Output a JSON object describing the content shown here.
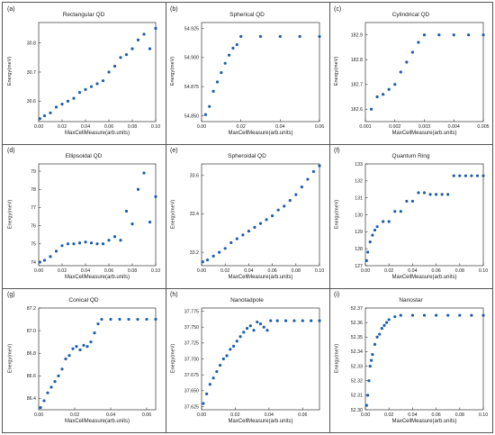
{
  "colors": {
    "marker": "#1f5fa8",
    "border": "#555555"
  },
  "panels": [
    {
      "label": "(a)",
      "xlabel": "MaxCellMeasure(arb.units)",
      "ylabel": "Energy(meV)"
    },
    {
      "label": "(b)",
      "xlabel": "MaxCellMeasure(arb.units)",
      "ylabel": "Energy(meV)"
    },
    {
      "label": "(c)",
      "xlabel": "MaxCellMeasure(arb.units)",
      "ylabel": "Energy(meV)"
    },
    {
      "label": "(d)",
      "xlabel": "MaxCellMeasure(arb.units)",
      "ylabel": "Energy(meV)"
    },
    {
      "label": "(e)",
      "xlabel": "MaxCellMeasure(arb.units)",
      "ylabel": "Energy(meV)"
    },
    {
      "label": "(f)",
      "xlabel": "MaxCellMeasure(arb.units)",
      "ylabel": "Energy(meV)"
    },
    {
      "label": "(g)",
      "xlabel": "MaxCellMeasure(arb.units)",
      "ylabel": "Energy(meV)"
    },
    {
      "label": "(h)",
      "xlabel": "MaxCellMeasure(arb.units)",
      "ylabel": "Energy(meV)"
    },
    {
      "label": "(i)",
      "xlabel": "MaxCellMeasure(arb.units)",
      "ylabel": "Energy(meV)"
    }
  ],
  "chart_data": [
    {
      "type": "scatter",
      "title": "Rectangular QD",
      "xlim": [
        0,
        0.1
      ],
      "ylim": [
        30.53,
        30.87
      ],
      "xticks": [
        "0.00",
        "0.02",
        "0.04",
        "0.06",
        "0.08",
        "0.10"
      ],
      "yticks": [
        "30.6",
        "30.7",
        "30.8"
      ],
      "x": [
        0.001,
        0.005,
        0.01,
        0.015,
        0.02,
        0.025,
        0.03,
        0.035,
        0.04,
        0.045,
        0.05,
        0.055,
        0.06,
        0.065,
        0.07,
        0.075,
        0.08,
        0.085,
        0.09,
        0.095,
        0.1
      ],
      "y": [
        30.54,
        30.55,
        30.56,
        30.58,
        30.59,
        30.6,
        30.61,
        30.63,
        30.64,
        30.65,
        30.66,
        30.67,
        30.7,
        30.72,
        30.75,
        30.76,
        30.78,
        30.81,
        30.83,
        30.78,
        30.85
      ]
    },
    {
      "type": "scatter",
      "title": "Spherical QD",
      "xlim": [
        0,
        0.06
      ],
      "ylim": [
        54.845,
        54.93
      ],
      "xticks": [
        "0.00",
        "0.02",
        "0.04",
        "0.06"
      ],
      "yticks": [
        "54.850",
        "54.875",
        "54.900",
        "54.925"
      ],
      "x": [
        0.002,
        0.004,
        0.006,
        0.008,
        0.01,
        0.012,
        0.014,
        0.016,
        0.018,
        0.02,
        0.03,
        0.04,
        0.05,
        0.06
      ],
      "y": [
        54.851,
        54.858,
        54.871,
        54.879,
        54.887,
        54.895,
        54.902,
        54.908,
        54.911,
        54.918,
        54.918,
        54.918,
        54.918,
        54.918
      ]
    },
    {
      "type": "scatter",
      "title": "Cylindrical QD",
      "xlim": [
        0.001,
        0.005
      ],
      "ylim": [
        182.55,
        182.95
      ],
      "xticks": [
        "0.001",
        "0.002",
        "0.003",
        "0.004",
        "0.005"
      ],
      "yticks": [
        "182.6",
        "182.7",
        "182.8",
        "182.9"
      ],
      "x": [
        0.0012,
        0.0014,
        0.0016,
        0.0018,
        0.002,
        0.0022,
        0.0024,
        0.0026,
        0.0028,
        0.003,
        0.0035,
        0.004,
        0.0045,
        0.005
      ],
      "y": [
        182.6,
        182.65,
        182.66,
        182.68,
        182.7,
        182.75,
        182.79,
        182.83,
        182.87,
        182.9,
        182.9,
        182.9,
        182.9,
        182.9
      ]
    },
    {
      "type": "scatter",
      "title": "Ellipsoidal QD",
      "xlim": [
        0,
        0.1
      ],
      "ylim": [
        73.8,
        79.4
      ],
      "xticks": [
        "0.00",
        "0.02",
        "0.04",
        "0.06",
        "0.08",
        "0.10"
      ],
      "yticks": [
        "74",
        "75",
        "76",
        "77",
        "78",
        "79"
      ],
      "x": [
        0.001,
        0.005,
        0.01,
        0.015,
        0.02,
        0.025,
        0.03,
        0.035,
        0.04,
        0.045,
        0.05,
        0.055,
        0.06,
        0.065,
        0.07,
        0.075,
        0.08,
        0.085,
        0.09,
        0.095,
        0.1
      ],
      "y": [
        74.0,
        74.1,
        74.3,
        74.6,
        74.9,
        75.0,
        75.0,
        75.05,
        75.1,
        75.05,
        75.0,
        75.0,
        75.2,
        75.4,
        75.2,
        76.8,
        76.1,
        78.0,
        78.9,
        76.2,
        77.6
      ]
    },
    {
      "type": "scatter",
      "title": "Spheroidal QD",
      "xlim": [
        0,
        0.1
      ],
      "ylim": [
        33.13,
        33.66
      ],
      "xticks": [
        "0.00",
        "0.02",
        "0.04",
        "0.06",
        "0.08",
        "0.10"
      ],
      "yticks": [
        "33.2",
        "33.4",
        "33.6"
      ],
      "x": [
        0.001,
        0.005,
        0.01,
        0.015,
        0.02,
        0.025,
        0.03,
        0.035,
        0.04,
        0.045,
        0.05,
        0.055,
        0.06,
        0.065,
        0.07,
        0.075,
        0.08,
        0.085,
        0.09,
        0.095,
        0.1
      ],
      "y": [
        33.15,
        33.16,
        33.18,
        33.2,
        33.22,
        33.25,
        33.27,
        33.29,
        33.31,
        33.33,
        33.35,
        33.37,
        33.39,
        33.42,
        33.44,
        33.47,
        33.5,
        33.54,
        33.58,
        33.62,
        33.65
      ]
    },
    {
      "type": "scatter",
      "title": "Quantum Ring",
      "xlim": [
        0,
        0.1
      ],
      "ylim": [
        127,
        133
      ],
      "xticks": [
        "0.00",
        "0.02",
        "0.04",
        "0.06",
        "0.08",
        "0.10"
      ],
      "yticks": [
        "127",
        "128",
        "129",
        "130",
        "131",
        "132",
        "133"
      ],
      "x": [
        0.001,
        0.002,
        0.004,
        0.006,
        0.008,
        0.01,
        0.015,
        0.02,
        0.025,
        0.03,
        0.035,
        0.04,
        0.045,
        0.05,
        0.055,
        0.06,
        0.065,
        0.07,
        0.075,
        0.08,
        0.085,
        0.09,
        0.095,
        0.1
      ],
      "y": [
        127.3,
        127.8,
        128.4,
        128.8,
        129.1,
        129.3,
        129.6,
        129.6,
        130.2,
        130.2,
        130.8,
        130.8,
        131.3,
        131.3,
        131.2,
        131.2,
        131.2,
        131.2,
        132.3,
        132.3,
        132.3,
        132.3,
        132.3,
        132.3
      ]
    },
    {
      "type": "scatter",
      "title": "Conical QD",
      "xlim": [
        0,
        0.065
      ],
      "ylim": [
        86.3,
        87.2
      ],
      "xticks": [
        "0.00",
        "0.02",
        "0.04",
        "0.06"
      ],
      "yticks": [
        "86.4",
        "86.6",
        "86.8",
        "87.0",
        "87.2"
      ],
      "x": [
        0.001,
        0.003,
        0.005,
        0.007,
        0.009,
        0.011,
        0.013,
        0.015,
        0.017,
        0.019,
        0.021,
        0.023,
        0.025,
        0.027,
        0.029,
        0.031,
        0.033,
        0.035,
        0.04,
        0.045,
        0.05,
        0.055,
        0.06,
        0.065
      ],
      "y": [
        86.32,
        86.38,
        86.45,
        86.5,
        86.55,
        86.6,
        86.66,
        86.75,
        86.78,
        86.84,
        86.86,
        86.83,
        86.87,
        86.86,
        86.9,
        86.98,
        87.06,
        87.1,
        87.1,
        87.1,
        87.1,
        87.1,
        87.1,
        87.1
      ]
    },
    {
      "type": "scatter",
      "title": "Nanotadpole",
      "xlim": [
        0,
        0.07
      ],
      "ylim": [
        37.62,
        37.78
      ],
      "xticks": [
        "0.00",
        "0.02",
        "0.04",
        "0.06"
      ],
      "yticks": [
        "37.625",
        "37.650",
        "37.675",
        "37.700",
        "37.725",
        "37.750",
        "37.775"
      ],
      "x": [
        0.001,
        0.003,
        0.005,
        0.007,
        0.009,
        0.011,
        0.013,
        0.015,
        0.017,
        0.019,
        0.021,
        0.023,
        0.025,
        0.027,
        0.029,
        0.031,
        0.033,
        0.035,
        0.037,
        0.039,
        0.041,
        0.045,
        0.05,
        0.055,
        0.06,
        0.065,
        0.07
      ],
      "y": [
        37.63,
        37.645,
        37.66,
        37.67,
        37.68,
        37.69,
        37.7,
        37.705,
        37.715,
        37.72,
        37.728,
        37.735,
        37.742,
        37.748,
        37.752,
        37.745,
        37.758,
        37.755,
        37.75,
        37.745,
        37.76,
        37.76,
        37.76,
        37.76,
        37.76,
        37.76,
        37.76
      ]
    },
    {
      "type": "scatter",
      "title": "Nanostar",
      "xlim": [
        0,
        0.1
      ],
      "ylim": [
        52.3,
        52.37
      ],
      "xticks": [
        "0.00",
        "0.02",
        "0.04",
        "0.06",
        "0.08",
        "0.10"
      ],
      "yticks": [
        "52.30",
        "52.31",
        "52.32",
        "52.33",
        "52.34",
        "52.35",
        "52.36",
        "52.37"
      ],
      "x": [
        0.001,
        0.002,
        0.003,
        0.004,
        0.005,
        0.006,
        0.008,
        0.01,
        0.012,
        0.014,
        0.016,
        0.018,
        0.02,
        0.025,
        0.03,
        0.04,
        0.05,
        0.06,
        0.07,
        0.08,
        0.09,
        0.1
      ],
      "y": [
        52.303,
        52.31,
        52.32,
        52.33,
        52.334,
        52.338,
        52.345,
        52.35,
        52.352,
        52.356,
        52.358,
        52.36,
        52.362,
        52.364,
        52.365,
        52.365,
        52.365,
        52.365,
        52.365,
        52.365,
        52.365,
        52.365
      ]
    }
  ]
}
